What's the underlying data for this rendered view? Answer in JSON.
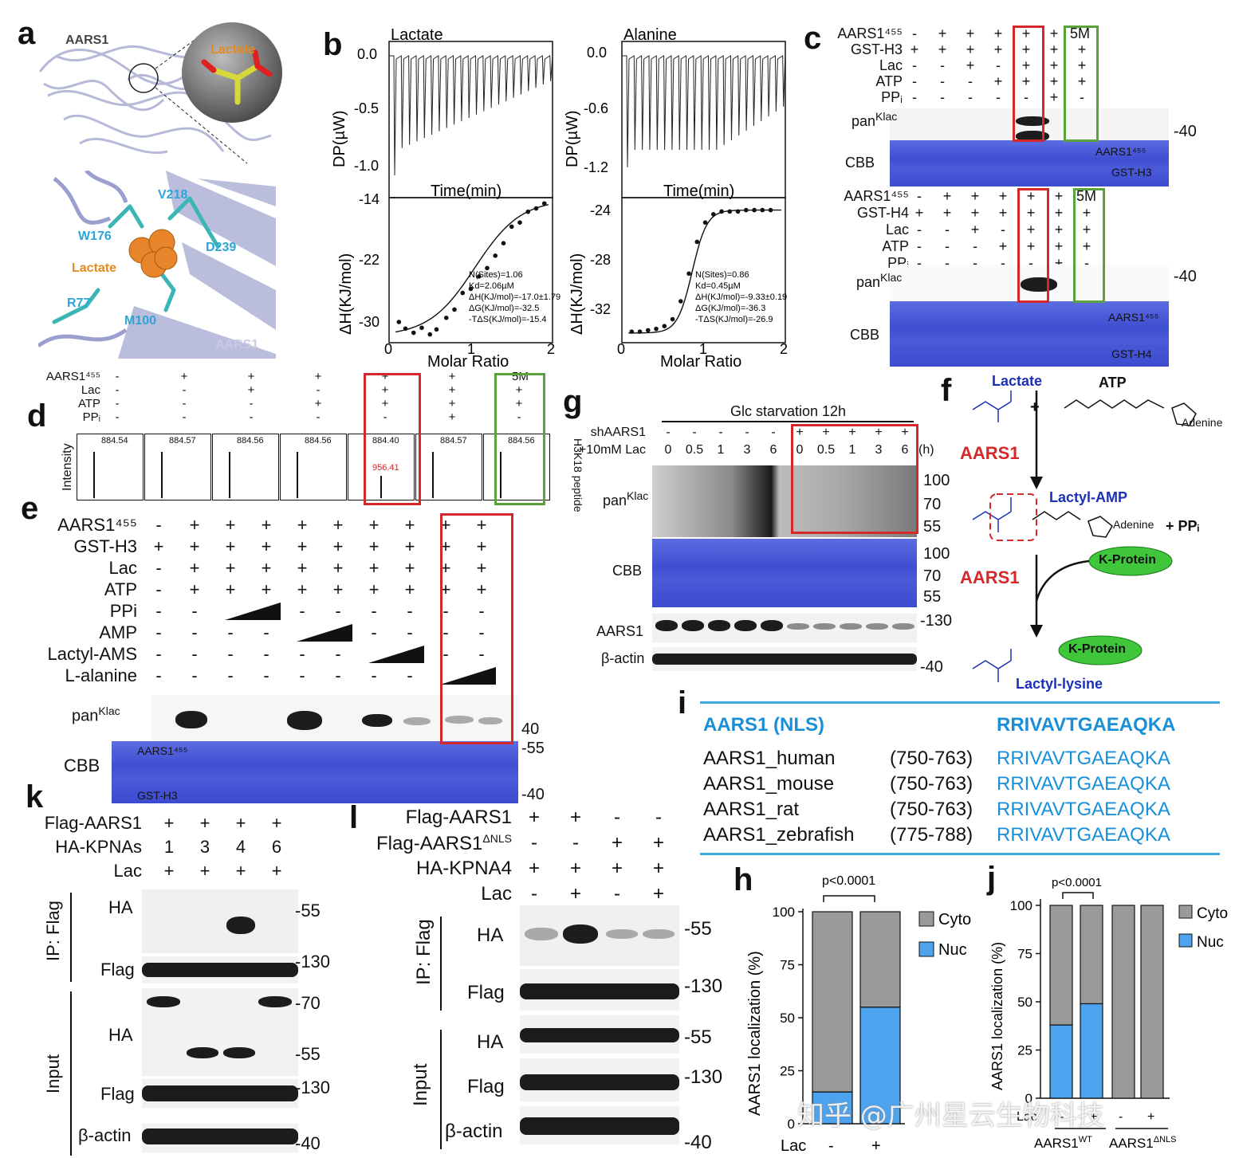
{
  "panels": {
    "a": "a",
    "b": "b",
    "c": "c",
    "d": "d",
    "e": "e",
    "f": "f",
    "g": "g",
    "h": "h",
    "i": "i",
    "j": "j",
    "k": "k",
    "l": "l"
  },
  "panel_a": {
    "protein": "AARS1",
    "ligand": "Lactate",
    "residues": [
      "V218",
      "W176",
      "D239",
      "R77",
      "M100"
    ],
    "chain": "AARS1",
    "ligand2": "Lactate"
  },
  "panel_b": {
    "left_title": "Lactate",
    "right_title": "Alanine",
    "dp_label": "DP(µW)",
    "time_label": "Time(min)",
    "dh_label": "ΔH(KJ/mol)",
    "molar_label": "Molar Ratio",
    "left_dp_ticks": [
      "0.0",
      "-0.5",
      "-1.0"
    ],
    "right_dp_ticks": [
      "0.0",
      "-0.6",
      "-1.2"
    ],
    "left_dh_ticks": [
      "-14",
      "-22",
      "-30"
    ],
    "right_dh_ticks": [
      "-24",
      "-28",
      "-32"
    ],
    "x_ticks": [
      "0",
      "1",
      "2"
    ],
    "left_fit": [
      "N(Sites)=1.06",
      "Kd=2.06µM",
      "ΔH(KJ/mol)=-17.0±1.79",
      "ΔG(KJ/mol)=-32.5",
      "-TΔS(KJ/mol)=-15.4"
    ],
    "right_fit": [
      "N(Sites)=0.86",
      "Kd=0.45µM",
      "ΔH(KJ/mol)=-9.33±0.19",
      "ΔG(KJ/mol)=-36.3",
      "-TΔS(KJ/mol)=-26.9"
    ]
  },
  "chart_data": [
    {
      "type": "scatter",
      "title": "Lactate",
      "xlabel": "Molar Ratio",
      "ylabel": "ΔH(KJ/mol)",
      "xlim": [
        0,
        2
      ],
      "ylim": [
        -31,
        -13.5
      ],
      "x": [
        0.12,
        0.2,
        0.3,
        0.4,
        0.5,
        0.58,
        0.7,
        0.8,
        0.9,
        1.0,
        1.1,
        1.2,
        1.3,
        1.4,
        1.5,
        1.6,
        1.7,
        1.8,
        1.9
      ],
      "y": [
        -28.5,
        -29.3,
        -29.8,
        -29.2,
        -30.0,
        -29.4,
        -28.0,
        -27.0,
        -25.0,
        -24.5,
        -23.0,
        -22.0,
        -20.5,
        -19.0,
        -17.0,
        -16.5,
        -15.2,
        -14.8,
        -14.2
      ]
    },
    {
      "type": "scatter",
      "title": "Alanine",
      "xlabel": "Molar Ratio",
      "ylabel": "ΔH(KJ/mol)",
      "xlim": [
        0,
        2
      ],
      "ylim": [
        -33.5,
        -23
      ],
      "x": [
        0.12,
        0.22,
        0.32,
        0.42,
        0.52,
        0.62,
        0.72,
        0.82,
        0.92,
        1.02,
        1.12,
        1.22,
        1.32,
        1.42,
        1.52,
        1.62,
        1.72,
        1.82
      ],
      "y": [
        -32.7,
        -32.7,
        -32.6,
        -32.5,
        -32.3,
        -31.8,
        -30.5,
        -28.5,
        -26.2,
        -24.8,
        -24.2,
        -24.0,
        -24.0,
        -24.0,
        -23.9,
        -23.9,
        -23.9,
        -23.9
      ]
    },
    {
      "type": "bar",
      "title": "h",
      "ylabel": "AARS1 localization (%)",
      "categories": [
        "-",
        "+"
      ],
      "xlabel": "Lac",
      "series": [
        {
          "name": "Nuc",
          "values": [
            15,
            55
          ]
        },
        {
          "name": "Cyto",
          "values": [
            85,
            45
          ]
        }
      ],
      "ylim": [
        0,
        100
      ],
      "yticks": [
        "0",
        "25",
        "50",
        "75",
        "100"
      ],
      "pvalue": "p<0.0001"
    },
    {
      "type": "bar",
      "title": "j",
      "ylabel": "AARS1 localization (%)",
      "categories": [
        "-",
        "+",
        "-",
        "+"
      ],
      "xlabel": "Lac",
      "groups": [
        "AARS1WT",
        "AARS1ΔNLS"
      ],
      "series": [
        {
          "name": "Nuc",
          "values": [
            38,
            49,
            0,
            0
          ]
        },
        {
          "name": "Cyto",
          "values": [
            62,
            51,
            100,
            100
          ]
        }
      ],
      "ylim": [
        0,
        100
      ],
      "yticks": [
        "0",
        "25",
        "50",
        "75",
        "100"
      ],
      "pvalue": "p<0.0001"
    }
  ],
  "panel_c": {
    "rows1": [
      "AARS1⁴⁵⁵",
      "GST-H3",
      "Lac",
      "ATP",
      "PPᵢ"
    ],
    "rows2": [
      "AARS1⁴⁵⁵",
      "GST-H4",
      "Lac",
      "ATP",
      "PPᵢ"
    ],
    "signs1": [
      [
        "-",
        "+",
        "+",
        "+",
        "+",
        "+"
      ],
      [
        "+",
        "+",
        "+",
        "+",
        "+",
        "+",
        "+"
      ],
      [
        "-",
        "-",
        "+",
        "-",
        "+",
        "+",
        "+"
      ],
      [
        "-",
        "-",
        "-",
        "+",
        "+",
        "+",
        "+"
      ],
      [
        "-",
        "-",
        "-",
        "-",
        "-",
        "+",
        "-"
      ]
    ],
    "signs2": [
      [
        "-",
        "+",
        "+",
        "+",
        "+",
        "+"
      ],
      [
        "+",
        "+",
        "+",
        "+",
        "+",
        "+",
        "+"
      ],
      [
        "-",
        "-",
        "+",
        "-",
        "+",
        "+",
        "+"
      ],
      [
        "-",
        "-",
        "-",
        "+",
        "+",
        "+",
        "+"
      ],
      [
        "-",
        "-",
        "-",
        "-",
        "-",
        "+",
        "-"
      ]
    ],
    "fivem": "5M",
    "blot": "pan",
    "klac": "Klac",
    "cbb": "CBB",
    "mw": "-40",
    "aars": "AARS1⁴⁵⁵",
    "gsth3": "GST-H3",
    "gsth4": "GST-H4"
  },
  "panel_d": {
    "rows": [
      "AARS1⁴⁵⁵",
      "Lac",
      "ATP",
      "PPᵢ"
    ],
    "signs": [
      [
        "-",
        "+",
        "+",
        "+",
        "+",
        "+"
      ],
      [
        "-",
        "-",
        "+",
        "-",
        "+",
        "+",
        "+"
      ],
      [
        "-",
        "-",
        "-",
        "+",
        "+",
        "+",
        "+"
      ],
      [
        "-",
        "-",
        "-",
        "-",
        "-",
        "+",
        "-"
      ]
    ],
    "fivem": "5M",
    "ylabel": "Intensity",
    "side": "H3K18 peptide",
    "peaks": [
      "884.54",
      "884.57",
      "884.56",
      "884.56",
      "884.40",
      "884.57",
      "884.56"
    ],
    "red_peak": "956.41"
  },
  "panel_e": {
    "rows": [
      "AARS1⁴⁵⁵",
      "GST-H3",
      "Lac",
      "ATP",
      "PPi",
      "AMP",
      "Lactyl-AMS",
      "L-alanine"
    ],
    "signs": [
      [
        "-",
        "+",
        "+",
        "+",
        "+",
        "+",
        "+",
        "+",
        "+",
        "+"
      ],
      [
        "+",
        "+",
        "+",
        "+",
        "+",
        "+",
        "+",
        "+",
        "+",
        "+"
      ],
      [
        "-",
        "+",
        "+",
        "+",
        "+",
        "+",
        "+",
        "+",
        "+",
        "+"
      ],
      [
        "-",
        "+",
        "+",
        "+",
        "+",
        "+",
        "+",
        "+",
        "+",
        "+"
      ],
      [
        "-",
        "-",
        "",
        "",
        "-",
        "-",
        "-",
        "-",
        "-",
        "-"
      ],
      [
        "-",
        "-",
        "-",
        "-",
        "",
        "",
        "-",
        "-",
        "-",
        "-"
      ],
      [
        "-",
        "-",
        "-",
        "-",
        "-",
        "-",
        "",
        "",
        "-",
        "-"
      ],
      [
        "-",
        "-",
        "-",
        "-",
        "-",
        "-",
        "-",
        "-",
        "",
        ""
      ]
    ],
    "blot": "pan",
    "klac": "Klac",
    "cbb": "CBB",
    "aars": "AARS1⁴⁵⁵",
    "gst": "GST-H3",
    "mw": [
      "40",
      "-55",
      "-40"
    ]
  },
  "panel_f": {
    "lactate": "Lactate",
    "atp": "ATP",
    "enzyme": "AARS1",
    "lactyl_amp": "Lactyl-AMP",
    "ppi": "+ PPᵢ",
    "kprotein": "K-Protein",
    "product": "Lactyl-lysine",
    "adenine": "Adenine",
    "plus": "+"
  },
  "panel_g": {
    "header": "Glc starvation 12h",
    "row1": "shAARS1",
    "row2": "+10mM Lac",
    "sh_signs": [
      "-",
      "-",
      "-",
      "-",
      "-",
      "+",
      "+",
      "+",
      "+",
      "+"
    ],
    "times": [
      "0",
      "0.5",
      "1",
      "3",
      "6",
      "0",
      "0.5",
      "1",
      "3",
      "6"
    ],
    "unit": "(h)",
    "blots": [
      "pan",
      "CBB",
      "AARS1",
      "β-actin"
    ],
    "klac": "Klac",
    "mw1": [
      "100",
      "70",
      "55"
    ],
    "mw2": [
      "100",
      "70",
      "55"
    ],
    "mw3": "-130",
    "mw4": "-40"
  },
  "panel_i": {
    "head_name": "AARS1 (NLS)",
    "head_seq": "RRIVAVTGAEAQKA",
    "rows": [
      {
        "name": "AARS1_human",
        "range": "(750-763)",
        "seq": "RRIVAVTGAEAQKA"
      },
      {
        "name": "AARS1_mouse",
        "range": "(750-763)",
        "seq": "RRIVAVTGAEAQKA"
      },
      {
        "name": "AARS1_rat",
        "range": "(750-763)",
        "seq": "RRIVAVTGAEAQKA"
      },
      {
        "name": "AARS1_zebrafish",
        "range": "(775-788)",
        "seq": "RRIVAVTGAEAQKA"
      }
    ]
  },
  "panel_h": {
    "legend": [
      "Cyto",
      "Nuc"
    ],
    "ylabel": "AARS1 localization (%)",
    "lac": "Lac",
    "pval": "p<0.0001"
  },
  "panel_j": {
    "legend": [
      "Cyto",
      "Nuc"
    ],
    "ylabel": "AARS1 localization (%)",
    "lac": "Lac",
    "pval": "p<0.0001",
    "g1": "AARS1",
    "g1sup": "WT",
    "g2": "AARS1",
    "g2sup": "ΔNLS"
  },
  "panel_k": {
    "rows": [
      "Flag-AARS1",
      "HA-KPNAs",
      "Lac"
    ],
    "flag_signs": [
      "+",
      "+",
      "+",
      "+"
    ],
    "kpnas": [
      "1",
      "3",
      "4",
      "6"
    ],
    "lac_signs": [
      "+",
      "+",
      "+",
      "+"
    ],
    "ip": "IP: Flag",
    "input": "Input",
    "blots": [
      "HA",
      "Flag",
      "HA",
      "Flag",
      "β-actin"
    ],
    "mw": [
      "-55",
      "-130",
      "-70",
      "-55",
      "-130",
      "-40"
    ]
  },
  "panel_l": {
    "rows": [
      "Flag-AARS1",
      "Flag-AARS1",
      "HA-KPNA4",
      "Lac"
    ],
    "dnls": "ΔNLS",
    "r1": [
      "+",
      "+",
      "-",
      "-"
    ],
    "r2": [
      "-",
      "-",
      "+",
      "+"
    ],
    "r3": [
      "+",
      "+",
      "+",
      "+"
    ],
    "r4": [
      "-",
      "+",
      "-",
      "+"
    ],
    "ip": "IP: Flag",
    "input": "Input",
    "blots": [
      "HA",
      "Flag",
      "HA",
      "Flag",
      "β-actin"
    ],
    "mw": [
      "-55",
      "-130",
      "-55",
      "-130",
      "-40"
    ]
  },
  "watermark": "知乎 @广州星云生物科技",
  "colors": {
    "red": "#d62828",
    "green": "#5aa33c",
    "blue": "#1a8fd8",
    "cbb": "#4353d6",
    "nuc": "#4da3ee",
    "cyto": "#9a9a9a"
  }
}
